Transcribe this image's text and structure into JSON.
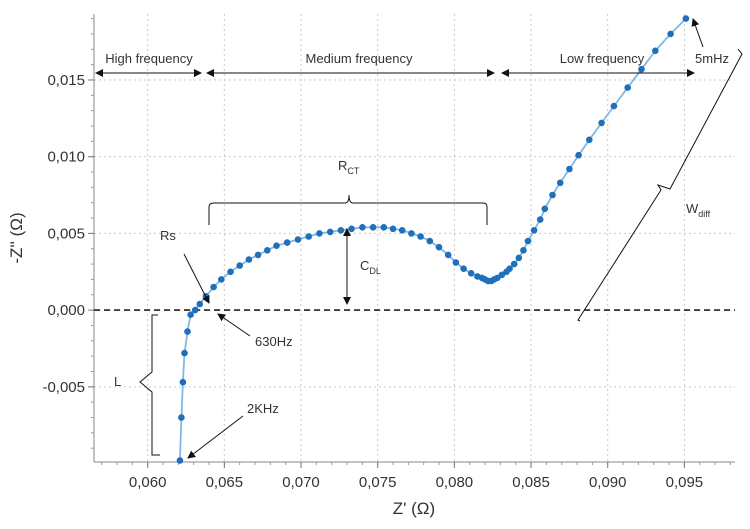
{
  "chart_data": {
    "type": "line",
    "xlabel": "Z' (Ω)",
    "ylabel": "-Z'' (Ω)",
    "xlim": [
      0.0565,
      0.0983
    ],
    "ylim": [
      -0.0099,
      0.0193
    ],
    "x_ticks": [
      "0,060",
      "0,065",
      "0,070",
      "0,075",
      "0,080",
      "0,085",
      "0,090",
      "0,095"
    ],
    "y_ticks": [
      "-0,005",
      "0,000",
      "0,005",
      "0,010",
      "0,015"
    ],
    "x_tick_values": [
      0.06,
      0.065,
      0.07,
      0.075,
      0.08,
      0.085,
      0.09,
      0.095
    ],
    "y_tick_values": [
      -0.005,
      0.0,
      0.005,
      0.01,
      0.015
    ],
    "grid": true,
    "zero_line": true,
    "series_color": "#1f6fba",
    "line_color": "#7fb8e6",
    "series": [
      {
        "x": [
          0.0621,
          0.0622,
          0.0623,
          0.0624,
          0.0626,
          0.0628,
          0.0631,
          0.0634,
          0.0638,
          0.0643,
          0.0648,
          0.0654,
          0.066,
          0.0666,
          0.0672,
          0.0678,
          0.0684,
          0.0691,
          0.0698,
          0.0705,
          0.0712,
          0.0719,
          0.0726,
          0.0733,
          0.074,
          0.0747,
          0.0754,
          0.076,
          0.0766,
          0.0772,
          0.0778,
          0.0784,
          0.079,
          0.0796,
          0.0801,
          0.0806,
          0.0811,
          0.0815,
          0.0818,
          0.082,
          0.0822,
          0.0824,
          0.0826,
          0.0828,
          0.0831,
          0.0834,
          0.0836,
          0.0839,
          0.0842,
          0.0845,
          0.0848,
          0.0852,
          0.0856,
          0.0859,
          0.0864,
          0.0869,
          0.0875,
          0.0881,
          0.0888,
          0.0896,
          0.0904,
          0.0913,
          0.0922,
          0.0931,
          0.0941,
          0.0951
        ],
        "y": [
          -0.0098,
          -0.007,
          -0.0047,
          -0.0028,
          -0.0014,
          -0.0003,
          0.0,
          0.0004,
          0.0009,
          0.0015,
          0.002,
          0.0025,
          0.0029,
          0.0033,
          0.0036,
          0.0039,
          0.0042,
          0.0044,
          0.0046,
          0.0048,
          0.005,
          0.0051,
          0.0052,
          0.0053,
          0.0054,
          0.0054,
          0.0054,
          0.0053,
          0.0052,
          0.005,
          0.0048,
          0.0045,
          0.0041,
          0.0036,
          0.0031,
          0.0027,
          0.0024,
          0.0022,
          0.0021,
          0.002,
          0.0019,
          0.0019,
          0.002,
          0.0021,
          0.0023,
          0.0025,
          0.0027,
          0.003,
          0.0034,
          0.0039,
          0.0045,
          0.0052,
          0.0059,
          0.0066,
          0.0075,
          0.0083,
          0.0092,
          0.0101,
          0.0111,
          0.0122,
          0.0133,
          0.0145,
          0.0157,
          0.0169,
          0.018,
          0.019
        ]
      }
    ],
    "annotations": {
      "high_freq": "High frequency",
      "medium_freq": "Medium frequency",
      "low_freq": "Low frequency",
      "five_mhz": "5mHz",
      "rct_main": "R",
      "rct_sub": "CT",
      "cdl_main": "C",
      "cdl_sub": "DL",
      "wdiff_main": "W",
      "wdiff_sub": "diff",
      "rs": "Rs",
      "f630": "630Hz",
      "L": "L",
      "f2k": "2KHz"
    }
  }
}
